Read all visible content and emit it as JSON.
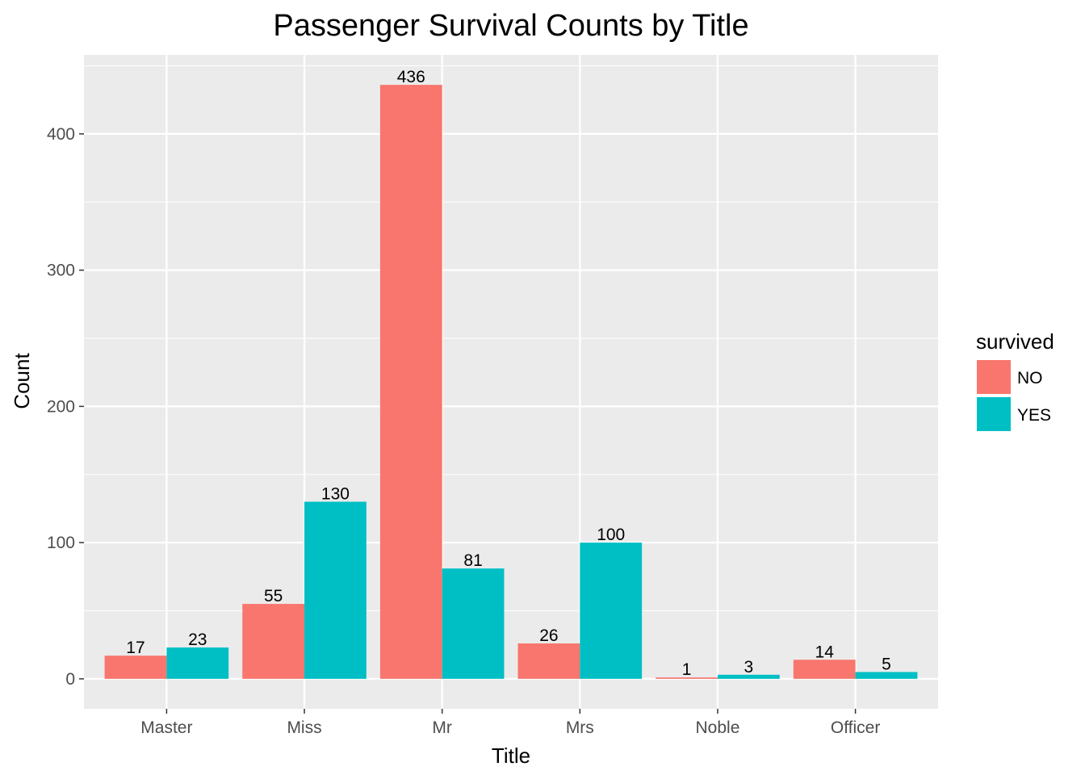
{
  "chart_data": {
    "type": "bar",
    "title": "Passenger Survival Counts by Title",
    "xlabel": "Title",
    "ylabel": "Count",
    "categories": [
      "Master",
      "Miss",
      "Mr",
      "Mrs",
      "Noble",
      "Officer"
    ],
    "series": [
      {
        "name": "NO",
        "values": [
          17,
          55,
          436,
          26,
          1,
          14
        ],
        "color": "#f8766d"
      },
      {
        "name": "YES",
        "values": [
          23,
          130,
          81,
          100,
          3,
          5
        ],
        "color": "#00bfc4"
      }
    ],
    "ylim": [
      -22,
      458
    ],
    "yticks": [
      0,
      100,
      200,
      300,
      400
    ],
    "grid": true,
    "legend": {
      "title": "survived",
      "position": "right"
    },
    "panel_background": "#ebebeb",
    "grid_color": "#ffffff"
  }
}
